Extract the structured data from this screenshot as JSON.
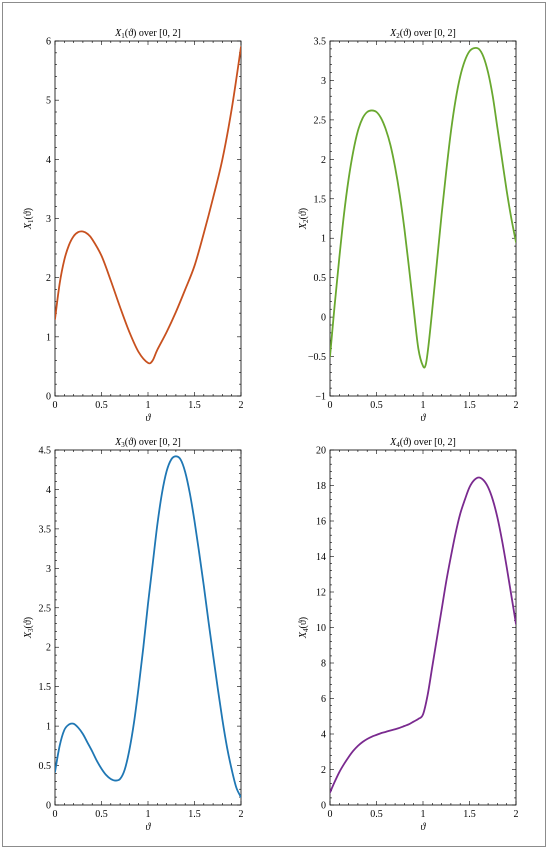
{
  "chart_data": [
    {
      "type": "line",
      "title": {
        "var": "X",
        "sub": "1",
        "arg": "(ϑ)",
        "tail": " over [0, 2]"
      },
      "xlabel": "ϑ",
      "ylabel": {
        "var": "X",
        "sub": "1",
        "arg": "(ϑ)"
      },
      "xlim": [
        0,
        2
      ],
      "ylim": [
        0,
        6
      ],
      "xticks": [
        0,
        0.5,
        1,
        1.5,
        2
      ],
      "yticks": [
        0,
        1,
        2,
        3,
        4,
        5,
        6
      ],
      "color": "#c8511f",
      "series": [
        {
          "x": [
            0,
            0.05,
            0.1,
            0.15,
            0.2,
            0.25,
            0.3,
            0.35,
            0.4,
            0.5,
            0.6,
            0.7,
            0.8,
            0.9,
            1.0,
            1.05,
            1.1,
            1.2,
            1.3,
            1.4,
            1.5,
            1.6,
            1.7,
            1.8,
            1.9,
            2.0
          ],
          "y": [
            1.3,
            1.9,
            2.3,
            2.55,
            2.7,
            2.77,
            2.78,
            2.74,
            2.65,
            2.37,
            1.95,
            1.5,
            1.08,
            0.74,
            0.56,
            0.6,
            0.78,
            1.08,
            1.42,
            1.8,
            2.2,
            2.75,
            3.35,
            4.0,
            4.85,
            5.9
          ]
        }
      ]
    },
    {
      "type": "line",
      "title": {
        "var": "X",
        "sub": "2",
        "arg": "(ϑ)",
        "tail": " over [0, 2]"
      },
      "xlabel": "ϑ",
      "ylabel": {
        "var": "X",
        "sub": "2",
        "arg": "(ϑ)"
      },
      "xlim": [
        0,
        2
      ],
      "ylim": [
        -1,
        3.5
      ],
      "xticks": [
        0,
        0.5,
        1,
        1.5,
        2
      ],
      "yticks": [
        -1,
        -0.5,
        0,
        0.5,
        1,
        1.5,
        2,
        2.5,
        3,
        3.5
      ],
      "color": "#69a82f",
      "series": [
        {
          "x": [
            0,
            0.05,
            0.1,
            0.15,
            0.2,
            0.25,
            0.3,
            0.35,
            0.4,
            0.45,
            0.5,
            0.55,
            0.6,
            0.65,
            0.7,
            0.75,
            0.8,
            0.85,
            0.9,
            0.95,
            1.0,
            1.03,
            1.06,
            1.1,
            1.15,
            1.2,
            1.25,
            1.3,
            1.35,
            1.4,
            1.45,
            1.5,
            1.55,
            1.6,
            1.65,
            1.7,
            1.75,
            1.8,
            1.85,
            1.9,
            1.95,
            2.0
          ],
          "y": [
            -0.5,
            0.15,
            0.75,
            1.3,
            1.75,
            2.1,
            2.36,
            2.52,
            2.6,
            2.62,
            2.6,
            2.52,
            2.38,
            2.18,
            1.9,
            1.55,
            1.12,
            0.62,
            0.1,
            -0.4,
            -0.62,
            -0.6,
            -0.35,
            0.1,
            0.7,
            1.3,
            1.85,
            2.35,
            2.75,
            3.05,
            3.25,
            3.37,
            3.41,
            3.4,
            3.3,
            3.1,
            2.8,
            2.4,
            2.0,
            1.6,
            1.25,
            0.95
          ]
        }
      ]
    },
    {
      "type": "line",
      "title": {
        "var": "X",
        "sub": "3",
        "arg": "(ϑ)",
        "tail": " over [0, 2]"
      },
      "xlabel": "ϑ",
      "ylabel": {
        "var": "X",
        "sub": "3",
        "arg": "(ϑ)"
      },
      "xlim": [
        0,
        2
      ],
      "ylim": [
        0,
        4.5
      ],
      "xticks": [
        0,
        0.5,
        1,
        1.5,
        2
      ],
      "yticks": [
        0,
        0.5,
        1,
        1.5,
        2,
        2.5,
        3,
        3.5,
        4,
        4.5
      ],
      "color": "#1f77b4",
      "series": [
        {
          "x": [
            0,
            0.05,
            0.1,
            0.15,
            0.2,
            0.25,
            0.3,
            0.35,
            0.4,
            0.45,
            0.5,
            0.55,
            0.6,
            0.65,
            0.7,
            0.75,
            0.8,
            0.85,
            0.9,
            0.95,
            1.0,
            1.05,
            1.1,
            1.15,
            1.2,
            1.25,
            1.3,
            1.35,
            1.4,
            1.45,
            1.5,
            1.55,
            1.6,
            1.65,
            1.7,
            1.75,
            1.8,
            1.85,
            1.9,
            1.95,
            2.0
          ],
          "y": [
            0.42,
            0.75,
            0.95,
            1.02,
            1.03,
            0.98,
            0.9,
            0.79,
            0.68,
            0.56,
            0.46,
            0.38,
            0.33,
            0.31,
            0.33,
            0.45,
            0.7,
            1.05,
            1.5,
            2.0,
            2.55,
            3.05,
            3.55,
            3.95,
            4.23,
            4.38,
            4.42,
            4.38,
            4.22,
            3.95,
            3.6,
            3.2,
            2.78,
            2.33,
            1.9,
            1.48,
            1.08,
            0.73,
            0.45,
            0.22,
            0.1
          ]
        }
      ]
    },
    {
      "type": "line",
      "title": {
        "var": "X",
        "sub": "4",
        "arg": "(ϑ)",
        "tail": " over [0, 2]"
      },
      "xlabel": "ϑ",
      "ylabel": {
        "var": "X",
        "sub": "4",
        "arg": "(ϑ)"
      },
      "xlim": [
        0,
        2
      ],
      "ylim": [
        0,
        20
      ],
      "xticks": [
        0,
        0.5,
        1,
        1.5,
        2
      ],
      "yticks": [
        0,
        2,
        4,
        6,
        8,
        10,
        12,
        14,
        16,
        18,
        20
      ],
      "color": "#7a2a8f",
      "series": [
        {
          "x": [
            0,
            0.05,
            0.1,
            0.15,
            0.2,
            0.25,
            0.3,
            0.35,
            0.4,
            0.45,
            0.5,
            0.55,
            0.6,
            0.65,
            0.7,
            0.75,
            0.8,
            0.85,
            0.9,
            0.95,
            1.0,
            1.05,
            1.1,
            1.15,
            1.2,
            1.25,
            1.3,
            1.35,
            1.4,
            1.45,
            1.5,
            1.55,
            1.6,
            1.65,
            1.7,
            1.75,
            1.8,
            1.85,
            1.9,
            1.95,
            2.0
          ],
          "y": [
            0.7,
            1.3,
            1.85,
            2.3,
            2.7,
            3.05,
            3.33,
            3.55,
            3.72,
            3.85,
            3.95,
            4.05,
            4.12,
            4.2,
            4.27,
            4.35,
            4.45,
            4.55,
            4.7,
            4.85,
            5.1,
            6.2,
            7.8,
            9.4,
            11.0,
            12.6,
            14.0,
            15.3,
            16.4,
            17.2,
            17.9,
            18.3,
            18.45,
            18.3,
            17.9,
            17.2,
            16.2,
            14.9,
            13.4,
            11.8,
            10.2
          ]
        }
      ]
    }
  ]
}
